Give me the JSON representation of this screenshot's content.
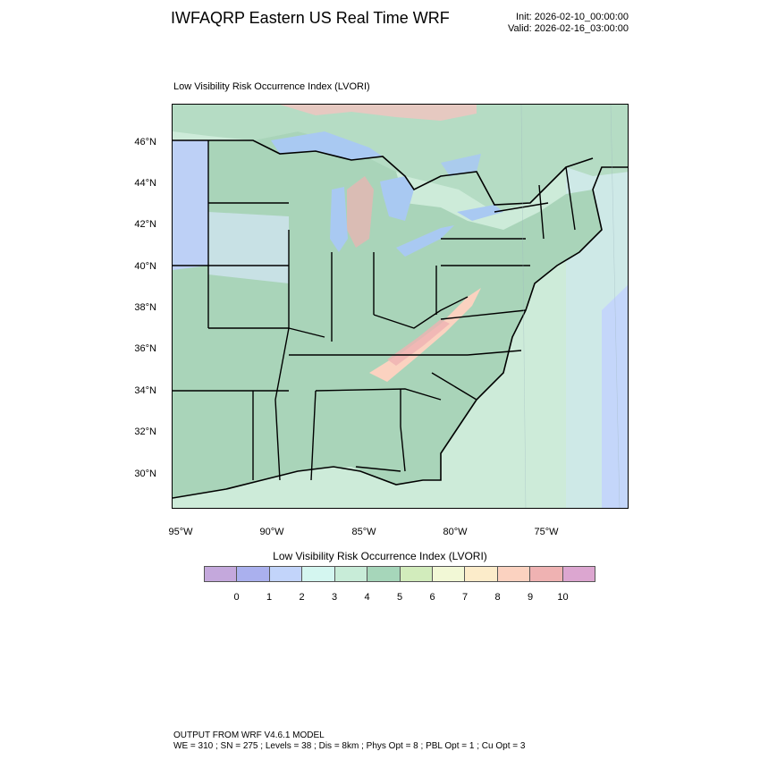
{
  "header": {
    "title": "IWFAQRP Eastern US Real Time WRF",
    "init_line": "Init: 2026-02-10_00:00:00",
    "valid_line": "Valid: 2026-02-16_03:00:00"
  },
  "map": {
    "subtitle": "Low Visibility Risk Occurrence Index   (LVORI)",
    "lat_labels": [
      "46°N",
      "44°N",
      "42°N",
      "40°N",
      "38°N",
      "36°N",
      "34°N",
      "32°N",
      "30°N"
    ],
    "lon_labels": [
      "95°W",
      "90°W",
      "85°W",
      "80°W",
      "75°W"
    ],
    "colors": {
      "ocean": "#cdebd9",
      "land_base": "#a9d4b9",
      "lake": "#a9c9f2",
      "borders": "#000000"
    }
  },
  "colorbar": {
    "title": "Low Visibility Risk Occurrence Index  (LVORI)",
    "ticks": [
      "0",
      "1",
      "2",
      "3",
      "4",
      "5",
      "6",
      "7",
      "8",
      "9",
      "10"
    ],
    "colors": [
      "#c4a8dc",
      "#aab0ee",
      "#c2d4fa",
      "#d4f6f0",
      "#c8ecd8",
      "#a6d6ba",
      "#d2ecbc",
      "#f2f8d6",
      "#fcecca",
      "#fbd2c0",
      "#efb2b2",
      "#dca6d0"
    ]
  },
  "footer": {
    "line1": "OUTPUT FROM WRF V4.6.1 MODEL",
    "line2": "WE = 310 ; SN = 275 ; Levels = 38 ; Dis = 8km ; Phys Opt = 8 ; PBL Opt = 1 ; Cu Opt = 3"
  }
}
